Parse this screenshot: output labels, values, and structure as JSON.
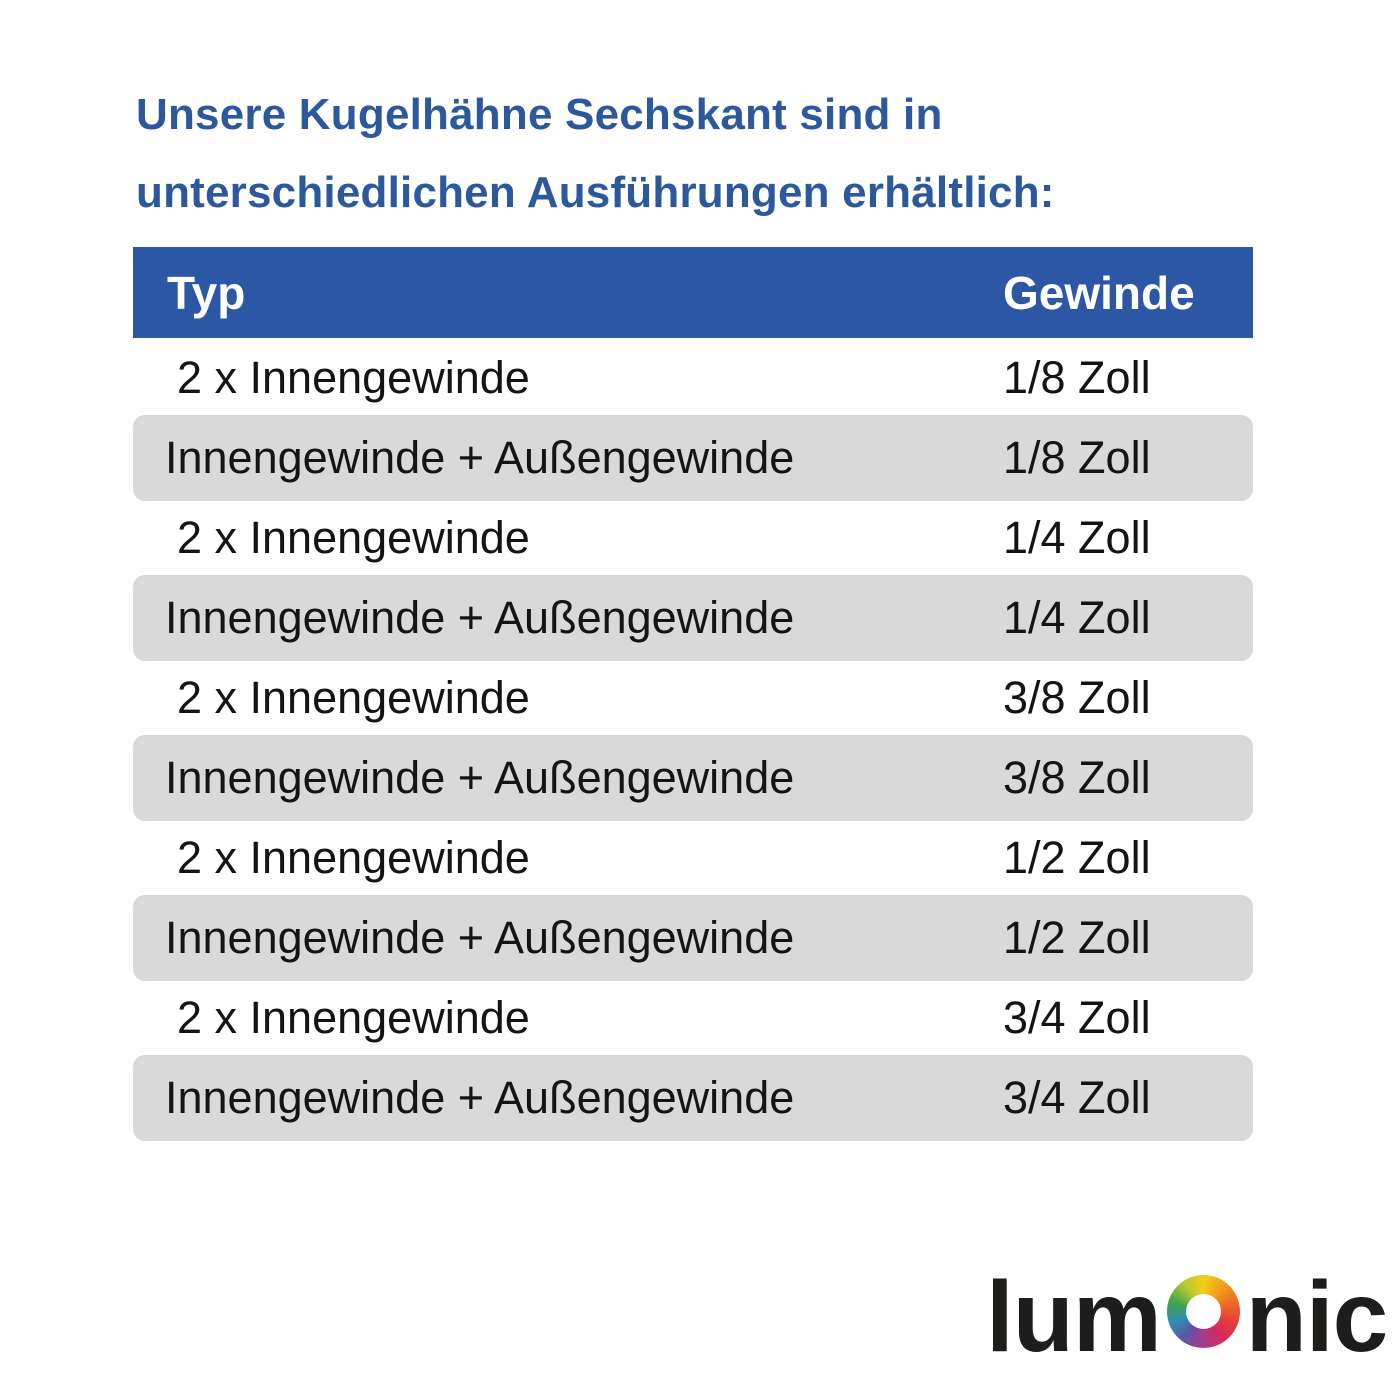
{
  "title": {
    "line1": "Unsere Kugelhähne Sechskant sind in",
    "line2": "unterschiedlichen Ausführungen erhältlich:"
  },
  "table": {
    "columns": [
      "Typ",
      "Gewinde"
    ],
    "rows": [
      {
        "typ": "2 x Innengewinde",
        "gewinde": "1/8 Zoll"
      },
      {
        "typ": "Innengewinde + Außengewinde",
        "gewinde": "1/8 Zoll"
      },
      {
        "typ": "2 x Innengewinde",
        "gewinde": "1/4 Zoll"
      },
      {
        "typ": "Innengewinde + Außengewinde",
        "gewinde": "1/4 Zoll"
      },
      {
        "typ": "2 x Innengewinde",
        "gewinde": "3/8 Zoll"
      },
      {
        "typ": "Innengewinde + Außengewinde",
        "gewinde": "3/8 Zoll"
      },
      {
        "typ": "2 x Innengewinde",
        "gewinde": "1/2 Zoll"
      },
      {
        "typ": "Innengewinde + Außengewinde",
        "gewinde": "1/2 Zoll"
      },
      {
        "typ": "2 x Innengewinde",
        "gewinde": "3/4 Zoll"
      },
      {
        "typ": "Innengewinde + Außengewinde",
        "gewinde": "3/4 Zoll"
      }
    ]
  },
  "logo": {
    "text": "lumOnic",
    "prefix": "lum",
    "suffix": "nic",
    "ring_colors": [
      "#f2cf17",
      "#f59e1c",
      "#ee6b23",
      "#e63f3a",
      "#d42a5c",
      "#a93a8b",
      "#5c55a5",
      "#2f8fae",
      "#44a34c",
      "#b5c832",
      "#f2cf17"
    ]
  },
  "colors": {
    "header_blue": "#2b57a4",
    "title_blue": "#2c589d",
    "row_gray": "#d9d9d9",
    "text_dark": "#141414",
    "logo_dark": "#1d1d1b",
    "background": "#ffffff"
  }
}
